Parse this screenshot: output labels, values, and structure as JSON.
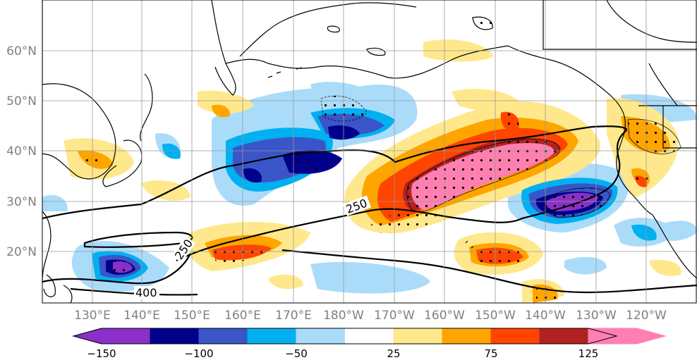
{
  "map": {
    "lat_labels": [
      "60°N",
      "50°N",
      "40°N",
      "30°N",
      "20°N"
    ],
    "lon_labels": [
      "130°E",
      "140°E",
      "150°E",
      "160°E",
      "170°E",
      "180°W",
      "170°W",
      "160°W",
      "150°W",
      "140°W",
      "130°W",
      "120°W"
    ],
    "contour_labels": [
      "250",
      "250",
      "400"
    ]
  },
  "colorbar": {
    "tick_labels": [
      "−150",
      "−100",
      "−50",
      "25",
      "75",
      "125"
    ],
    "colors": [
      "#8b2fc9",
      "#00008b",
      "#3a55c8",
      "#00b0f0",
      "#aadcfa",
      "#ffffff",
      "#ffe88c",
      "#ffa500",
      "#ff4500",
      "#b22222",
      "#ff80b0"
    ]
  }
}
